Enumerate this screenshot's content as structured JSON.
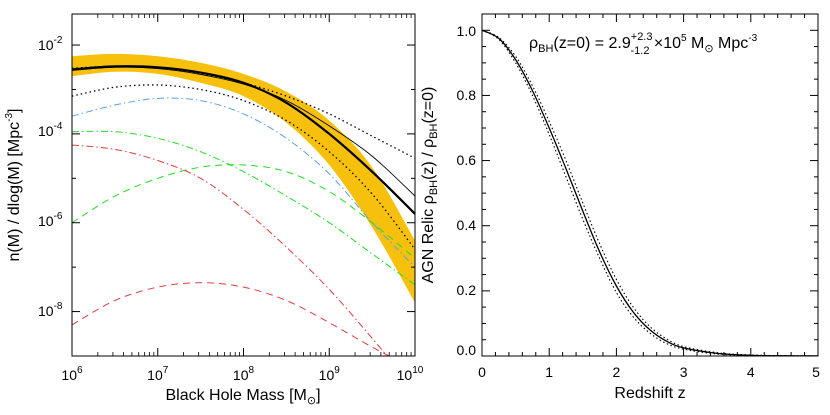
{
  "chart_data": [
    {
      "type": "line",
      "xlabel": "Black Hole Mass [M",
      "xlabel_suffix": "]",
      "ylabel": "n(M) / dlog(M)  [Mpc",
      "ylabel_exp": "-3",
      "ylabel_suffix": "]",
      "xscale": "log",
      "yscale": "log",
      "xlim": [
        1000000,
        10000000000
      ],
      "ylim": [
        1e-09,
        0.05
      ],
      "x_ticks": [
        {
          "base": "10",
          "exp": "6"
        },
        {
          "base": "10",
          "exp": "7"
        },
        {
          "base": "10",
          "exp": "8"
        },
        {
          "base": "10",
          "exp": "9"
        },
        {
          "base": "10",
          "exp": "10"
        }
      ],
      "y_ticks": [
        {
          "base": "10",
          "exp": "-8"
        },
        {
          "base": "10",
          "exp": "-6"
        },
        {
          "base": "10",
          "exp": "-4"
        },
        {
          "base": "10",
          "exp": "-2"
        }
      ],
      "colors": {
        "band": "#f7c00c",
        "thick": "#000000",
        "blue": "#5aa0e6",
        "green": "#22dd22",
        "red": "#e23c3c"
      },
      "band": {
        "log_x": [
          6,
          6.5,
          7,
          7.5,
          8,
          8.5,
          9,
          9.5,
          10
        ],
        "log_y_upper": [
          -2.25,
          -2.2,
          -2.25,
          -2.4,
          -2.65,
          -3.05,
          -3.7,
          -4.75,
          -6.4
        ],
        "log_y_lower": [
          -2.7,
          -2.6,
          -2.65,
          -2.85,
          -3.15,
          -3.75,
          -4.7,
          -6.1,
          -7.8
        ]
      },
      "series": [
        {
          "style": "thick-solid",
          "log_x": [
            6,
            6.5,
            7,
            7.5,
            8,
            8.5,
            9,
            9.5,
            10
          ],
          "log_y": [
            -2.55,
            -2.48,
            -2.5,
            -2.62,
            -2.85,
            -3.3,
            -4.0,
            -4.85,
            -5.8
          ]
        },
        {
          "style": "thin-solid",
          "log_x": [
            6,
            6.5,
            7,
            7.5,
            8,
            8.5,
            9,
            9.5,
            10
          ],
          "log_y": [
            -2.57,
            -2.5,
            -2.53,
            -2.66,
            -2.88,
            -3.25,
            -3.82,
            -4.5,
            -5.4
          ]
        },
        {
          "style": "dotted-upper",
          "log_x": [
            6,
            6.5,
            7,
            7.5,
            8,
            8.5,
            9,
            9.5,
            10
          ],
          "log_y": [
            -2.52,
            -2.48,
            -2.52,
            -2.65,
            -2.85,
            -3.15,
            -3.55,
            -4.05,
            -4.55
          ]
        },
        {
          "style": "dotted-lower",
          "log_x": [
            6,
            6.5,
            7,
            7.5,
            8,
            8.5,
            9,
            9.5,
            10
          ],
          "log_y": [
            -3.15,
            -2.95,
            -2.9,
            -3.0,
            -3.25,
            -3.7,
            -4.4,
            -5.35,
            -6.6
          ]
        },
        {
          "style": "blue-dashdot",
          "log_x": [
            6,
            6.5,
            7,
            7.5,
            8,
            8.5,
            9,
            9.5,
            10
          ],
          "log_y": [
            -3.6,
            -3.35,
            -3.2,
            -3.25,
            -3.55,
            -4.1,
            -4.9,
            -6.0,
            -7.0
          ]
        },
        {
          "style": "green-dashdot",
          "log_x": [
            6,
            6.5,
            7,
            7.5,
            8,
            8.5,
            9,
            9.5,
            10
          ],
          "log_y": [
            -3.95,
            -3.95,
            -4.1,
            -4.4,
            -4.85,
            -5.4,
            -6.0,
            -6.7,
            -7.4
          ]
        },
        {
          "style": "green-dashed",
          "log_x": [
            6,
            6.5,
            7,
            7.5,
            8,
            8.5,
            9,
            9.5,
            10
          ],
          "log_y": [
            -6.0,
            -5.4,
            -5.0,
            -4.75,
            -4.7,
            -4.85,
            -5.3,
            -6.0,
            -6.8
          ]
        },
        {
          "style": "red-dashdot",
          "log_x": [
            6,
            6.5,
            7,
            7.5,
            8,
            8.5,
            9,
            9.5,
            9.8
          ],
          "log_y": [
            -4.25,
            -4.35,
            -4.6,
            -5.0,
            -5.7,
            -6.55,
            -7.5,
            -8.6,
            -9.3
          ]
        },
        {
          "style": "red-dashed",
          "log_x": [
            6,
            6.5,
            7,
            7.5,
            8,
            8.5,
            9,
            9.5,
            10
          ],
          "log_y": [
            -8.3,
            -7.75,
            -7.45,
            -7.35,
            -7.45,
            -7.75,
            -8.25,
            -8.8,
            -9.3
          ]
        }
      ]
    },
    {
      "type": "line",
      "xlabel": "Redshift z",
      "ylabel": "AGN Relic ρ",
      "ylabel_sub1": "BH",
      "ylabel_mid": "(z) / ρ",
      "ylabel_sub2": "BH",
      "ylabel_end": "(z=0)",
      "xlim": [
        0,
        5
      ],
      "ylim": [
        0,
        1.05
      ],
      "x_ticks": [
        "0",
        "1",
        "2",
        "3",
        "4",
        "5"
      ],
      "y_ticks": [
        "0.0",
        "0.2",
        "0.4",
        "0.6",
        "0.8",
        "1.0"
      ],
      "annotation": {
        "prefix": "ρ",
        "sub": "BH",
        "text1": "(z=0) = 2.9",
        "sup": "+2.3",
        "subscript": "-1.2",
        "text2": " ×10",
        "exp": "5",
        "text3": " M",
        "text4": " Mpc",
        "exp2": "-3"
      },
      "series": [
        {
          "style": "solid",
          "x": [
            0,
            0.25,
            0.5,
            0.75,
            1.0,
            1.25,
            1.5,
            1.75,
            2.0,
            2.25,
            2.5,
            2.75,
            3.0,
            3.5,
            4.0,
            4.5,
            5.0
          ],
          "y": [
            1.0,
            0.975,
            0.91,
            0.815,
            0.7,
            0.575,
            0.445,
            0.32,
            0.215,
            0.135,
            0.08,
            0.045,
            0.025,
            0.008,
            0.002,
            0.0006,
            0.0002
          ]
        },
        {
          "style": "dotted-upper",
          "x": [
            0,
            0.25,
            0.5,
            0.75,
            1.0,
            1.25,
            1.5,
            1.75,
            2.0,
            2.25,
            2.5,
            2.75,
            3.0,
            3.5,
            4.0,
            4.5,
            5.0
          ],
          "y": [
            1.0,
            0.978,
            0.92,
            0.83,
            0.72,
            0.6,
            0.47,
            0.345,
            0.235,
            0.15,
            0.09,
            0.052,
            0.029,
            0.01,
            0.003,
            0.001,
            0.0003
          ]
        },
        {
          "style": "dotted-lower",
          "x": [
            0,
            0.25,
            0.5,
            0.75,
            1.0,
            1.25,
            1.5,
            1.75,
            2.0,
            2.25,
            2.5,
            2.75,
            3.0,
            3.5,
            4.0,
            4.5,
            5.0
          ],
          "y": [
            1.0,
            0.972,
            0.9,
            0.8,
            0.68,
            0.55,
            0.42,
            0.3,
            0.195,
            0.12,
            0.07,
            0.038,
            0.021,
            0.006,
            0.0015,
            0.0004,
            0.0001
          ]
        }
      ]
    }
  ]
}
